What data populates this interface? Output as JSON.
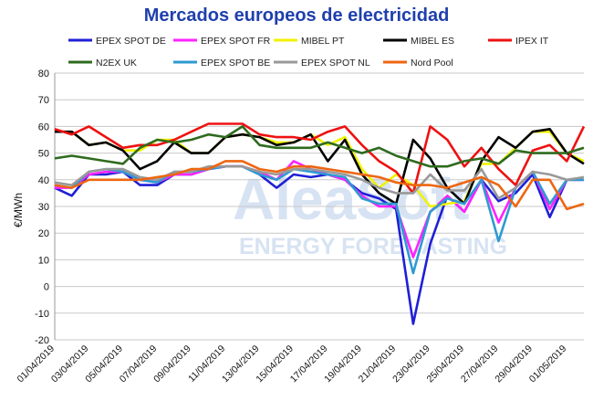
{
  "chart_data": {
    "type": "line",
    "title": "Mercados europeos de electricidad",
    "ylabel": "€/MWh",
    "xlabel": "",
    "watermark": {
      "brand": "AleaSoft",
      "tagline": "ENERGY FORECASTING"
    },
    "ylim": [
      -20,
      80
    ],
    "yticks": [
      -20,
      -10,
      0,
      10,
      20,
      30,
      40,
      50,
      60,
      70,
      80
    ],
    "grid": true,
    "legend_position": "top",
    "x": [
      "01/04/2019",
      "02/04/2019",
      "03/04/2019",
      "04/04/2019",
      "05/04/2019",
      "06/04/2019",
      "07/04/2019",
      "08/04/2019",
      "09/04/2019",
      "10/04/2019",
      "11/04/2019",
      "12/04/2019",
      "13/04/2019",
      "14/04/2019",
      "15/04/2019",
      "16/04/2019",
      "17/04/2019",
      "18/04/2019",
      "19/04/2019",
      "20/04/2019",
      "21/04/2019",
      "22/04/2019",
      "23/04/2019",
      "24/04/2019",
      "25/04/2019",
      "26/04/2019",
      "27/04/2019",
      "28/04/2019",
      "29/04/2019",
      "30/04/2019",
      "01/05/2019",
      "02/05/2019"
    ],
    "x_tick_labels": [
      "01/04/2019",
      "03/04/2019",
      "05/04/2019",
      "07/04/2019",
      "09/04/2019",
      "11/04/2019",
      "13/04/2019",
      "15/04/2019",
      "17/04/2019",
      "19/04/2019",
      "21/04/2019",
      "23/04/2019",
      "25/04/2019",
      "27/04/2019",
      "29/04/2019",
      "01/05/2019"
    ],
    "series": [
      {
        "name": "EPEX SPOT DE",
        "color": "#1f1fd6",
        "values": [
          37,
          34,
          42,
          42,
          43,
          38,
          38,
          42,
          42,
          44,
          45,
          45,
          42,
          37,
          42,
          41,
          42,
          40,
          35,
          33,
          29,
          -14,
          16,
          34,
          28,
          40,
          32,
          35,
          42,
          26,
          40,
          40
        ]
      },
      {
        "name": "EPEX SPOT FR",
        "color": "#ff22ff",
        "values": [
          37,
          37,
          42,
          43,
          43,
          40,
          39,
          42,
          42,
          44,
          45,
          45,
          43,
          40,
          47,
          44,
          42,
          40,
          34,
          30,
          30,
          11,
          28,
          34,
          28,
          40,
          24,
          37,
          43,
          29,
          40,
          40
        ]
      },
      {
        "name": "MIBEL PT",
        "color": "#f2f200",
        "values": [
          58,
          58,
          53,
          54,
          51,
          51,
          55,
          55,
          50,
          50,
          56,
          57,
          56,
          54,
          54,
          57,
          53,
          56,
          44,
          37,
          42,
          38,
          30,
          31,
          32,
          46,
          46,
          52,
          58,
          58,
          50,
          47
        ]
      },
      {
        "name": "MIBEL ES",
        "color": "#000000",
        "values": [
          58,
          58,
          53,
          54,
          51,
          44,
          47,
          54,
          50,
          50,
          56,
          57,
          56,
          53,
          54,
          57,
          47,
          55,
          42,
          35,
          31,
          55,
          48,
          37,
          31,
          47,
          56,
          52,
          58,
          59,
          50,
          46
        ]
      },
      {
        "name": "IPEX IT",
        "color": "#ee1111",
        "values": [
          59,
          57,
          60,
          56,
          52,
          53,
          53,
          55,
          58,
          61,
          61,
          61,
          57,
          56,
          56,
          55,
          58,
          60,
          53,
          47,
          43,
          35,
          60,
          55,
          45,
          52,
          44,
          38,
          51,
          53,
          47,
          60
        ]
      },
      {
        "name": "N2EX UK",
        "color": "#2e6b1e",
        "values": [
          48,
          49,
          48,
          47,
          46,
          52,
          55,
          54,
          55,
          57,
          56,
          60,
          53,
          52,
          52,
          52,
          54,
          52,
          50,
          52,
          49,
          47,
          45,
          45,
          47,
          48,
          46,
          51,
          50,
          50,
          50,
          52
        ]
      },
      {
        "name": "EPEX SPOT BE",
        "color": "#2e9ad1",
        "values": [
          38,
          37,
          43,
          44,
          43,
          40,
          39,
          43,
          43,
          44,
          45,
          45,
          42,
          40,
          44,
          43,
          42,
          41,
          33,
          31,
          31,
          5,
          28,
          33,
          31,
          40,
          17,
          37,
          43,
          31,
          40,
          40
        ]
      },
      {
        "name": "EPEX SPOT NL",
        "color": "#999999",
        "values": [
          39,
          38,
          43,
          44,
          44,
          41,
          40,
          43,
          43,
          45,
          45,
          45,
          43,
          42,
          44,
          44,
          43,
          42,
          40,
          37,
          35,
          35,
          42,
          36,
          36,
          44,
          33,
          37,
          43,
          42,
          40,
          41
        ]
      },
      {
        "name": "Nord Pool",
        "color": "#ee6611",
        "values": [
          38,
          37,
          40,
          40,
          40,
          40,
          41,
          42,
          44,
          44,
          47,
          47,
          44,
          43,
          45,
          45,
          44,
          43,
          42,
          41,
          39,
          38,
          38,
          37,
          39,
          41,
          38,
          30,
          40,
          40,
          29,
          31
        ]
      }
    ]
  }
}
